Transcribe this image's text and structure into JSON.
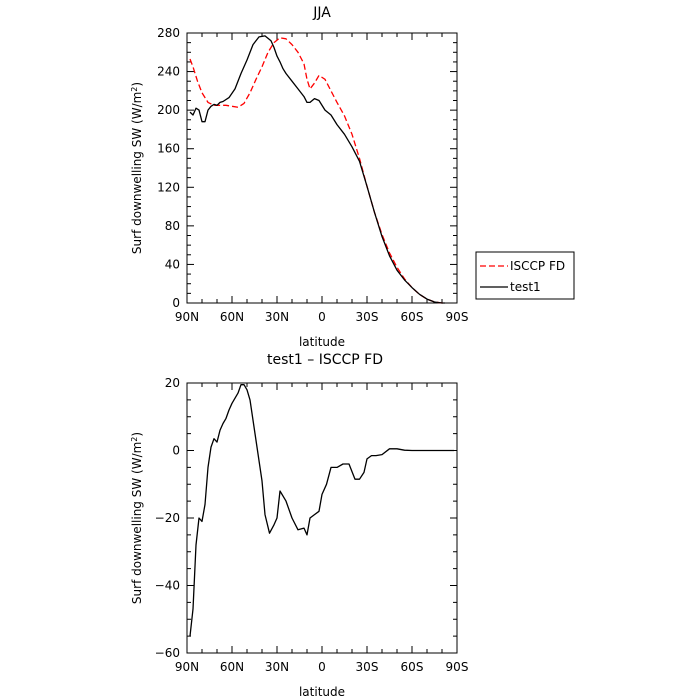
{
  "chart_data": [
    {
      "type": "line",
      "title": "JJA",
      "xlabel": "latitude",
      "ylabel": "Surf downwelling SW (W/m²)",
      "ylabel_main": "Surf downwelling SW (W/m",
      "ylabel_sup": "2",
      "ylabel_end": ")",
      "xlim": [
        90,
        -90
      ],
      "ylim": [
        0,
        280
      ],
      "xticks": [
        90,
        60,
        30,
        0,
        -30,
        -60,
        -90
      ],
      "xticklabels": [
        "90N",
        "60N",
        "30N",
        "0",
        "30S",
        "60S",
        "90S"
      ],
      "yticks": [
        0,
        40,
        80,
        120,
        160,
        200,
        240,
        280
      ],
      "yticklabels": [
        "0",
        "40",
        "80",
        "120",
        "160",
        "200",
        "240",
        "280"
      ],
      "legend": {
        "placement": "right"
      },
      "series": [
        {
          "name": "ISCCP FD",
          "color": "#ff0000",
          "dash": "dashed",
          "x": [
            88,
            86,
            83,
            80,
            76,
            72,
            68,
            64,
            60,
            56,
            52,
            48,
            44,
            40,
            36,
            32,
            28,
            24,
            20,
            16,
            12,
            10,
            8,
            5,
            2,
            -2,
            -6,
            -10,
            -15,
            -20,
            -25,
            -30,
            -35,
            -40,
            -45,
            -50,
            -55,
            -60,
            -65,
            -70,
            -75,
            -80,
            -82
          ],
          "y": [
            253,
            245,
            230,
            218,
            208,
            205,
            205,
            205,
            204,
            203,
            207,
            218,
            232,
            245,
            260,
            270,
            275,
            274,
            268,
            260,
            248,
            232,
            222,
            228,
            236,
            232,
            220,
            208,
            194,
            175,
            150,
            121,
            94,
            71,
            52,
            37,
            25,
            16,
            9,
            4,
            1,
            0,
            0
          ]
        },
        {
          "name": "test1",
          "color": "#000000",
          "dash": "solid",
          "x": [
            88,
            86,
            84,
            82,
            80,
            78,
            76,
            74,
            72,
            70,
            68,
            66,
            62,
            58,
            54,
            50,
            46,
            42,
            38,
            34,
            32,
            30,
            28,
            26,
            24,
            20,
            16,
            12,
            10,
            8,
            5,
            2,
            -2,
            -6,
            -10,
            -15,
            -20,
            -25,
            -30,
            -35,
            -40,
            -45,
            -50,
            -55,
            -60,
            -65,
            -70,
            -75,
            -80,
            -82
          ],
          "y": [
            198,
            195,
            202,
            200,
            188,
            188,
            200,
            204,
            206,
            205,
            208,
            209,
            213,
            222,
            238,
            252,
            268,
            276,
            277,
            272,
            265,
            256,
            250,
            243,
            238,
            230,
            222,
            214,
            208,
            208,
            212,
            210,
            200,
            195,
            185,
            175,
            162,
            147,
            121,
            94,
            69,
            49,
            34,
            24,
            16,
            9,
            4,
            1,
            0,
            0
          ]
        }
      ]
    },
    {
      "type": "line",
      "title": "test1 – ISCCP FD",
      "xlabel": "latitude",
      "ylabel": "Surf downwelling SW (W/m²)",
      "ylabel_main": "Surf downwelling SW (W/m",
      "ylabel_sup": "2",
      "ylabel_end": ")",
      "xlim": [
        90,
        -90
      ],
      "ylim": [
        -60,
        20
      ],
      "xticks": [
        90,
        60,
        30,
        0,
        -30,
        -60,
        -90
      ],
      "xticklabels": [
        "90N",
        "60N",
        "30N",
        "0",
        "30S",
        "60S",
        "90S"
      ],
      "yticks": [
        -60,
        -40,
        -20,
        0,
        20
      ],
      "yticklabels": [
        "−60",
        "−40",
        "−20",
        "0",
        "20"
      ],
      "series": [
        {
          "name": "",
          "color": "#000000",
          "dash": "solid",
          "x": [
            88,
            86,
            84,
            82,
            80,
            78,
            76,
            74,
            72,
            70,
            68,
            66,
            64,
            62,
            60,
            58,
            56,
            54,
            52,
            50,
            48,
            46,
            44,
            42,
            40,
            38,
            35,
            32,
            30,
            28,
            24,
            20,
            16,
            12,
            10,
            8,
            5,
            2,
            0,
            -3,
            -6,
            -10,
            -14,
            -18,
            -22,
            -25,
            -28,
            -30,
            -33,
            -36,
            -40,
            -45,
            -50,
            -55,
            -60,
            -65,
            -68,
            -72,
            -76,
            -80,
            -82,
            -88
          ],
          "y": [
            -55,
            -47,
            -28,
            -20,
            -21,
            -16,
            -5,
            1,
            3.5,
            2.5,
            6,
            8,
            9.5,
            12,
            14,
            15.5,
            17,
            19.5,
            19.5,
            18,
            15,
            9,
            3,
            -3,
            -9,
            -19,
            -24.5,
            -22,
            -20,
            -12,
            -15,
            -20,
            -23.5,
            -23,
            -25,
            -20,
            -19,
            -18,
            -13,
            -10,
            -5,
            -5,
            -4,
            -4,
            -8.5,
            -8.5,
            -6.5,
            -2.5,
            -1.5,
            -1.5,
            -1.2,
            0.5,
            0.5,
            0.1,
            0,
            0,
            0,
            0,
            0,
            0,
            0,
            0
          ]
        }
      ]
    }
  ]
}
